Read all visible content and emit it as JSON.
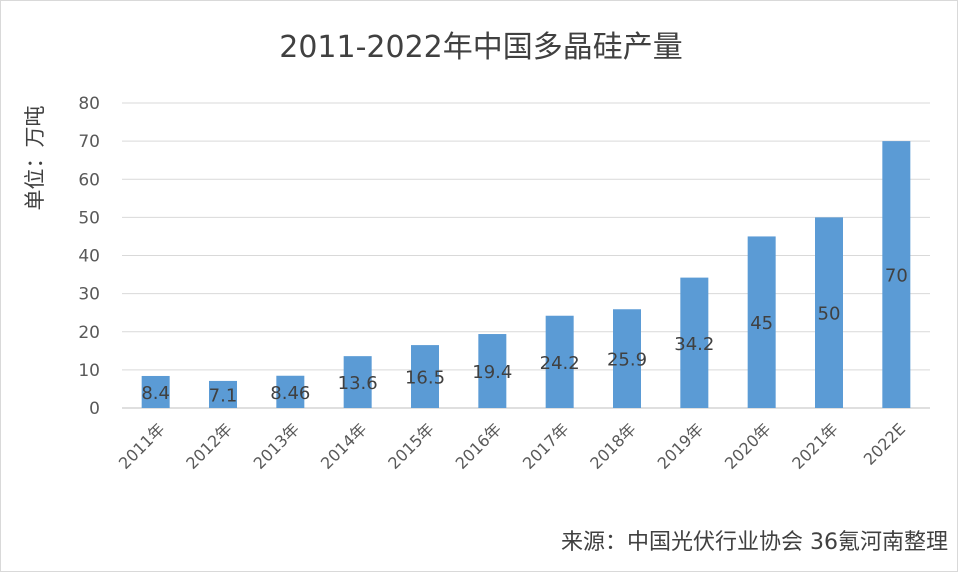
{
  "chart_data": {
    "type": "bar",
    "title": "2011-2022年中国多晶硅产量",
    "ylabel": "单位：万吨",
    "xlabel": "",
    "categories": [
      "2011年",
      "2012年",
      "2013年",
      "2014年",
      "2015年",
      "2016年",
      "2017年",
      "2018年",
      "2019年",
      "2020年",
      "2021年",
      "2022E"
    ],
    "values": [
      8.4,
      7.1,
      8.46,
      13.6,
      16.5,
      19.4,
      24.2,
      25.9,
      34.2,
      45,
      50,
      70
    ],
    "data_labels": [
      "8.4",
      "7.1",
      "8.46",
      "13.6",
      "16.5",
      "19.4",
      "24.2",
      "25.9",
      "34.2",
      "45",
      "50",
      "70"
    ],
    "ylim": [
      0,
      80
    ],
    "yticks": [
      0,
      10,
      20,
      30,
      40,
      50,
      60,
      70,
      80
    ],
    "grid": true,
    "legend": "none",
    "bar_color": "#5b9bd5"
  },
  "source_note": "来源：中国光伏行业协会 36氪河南整理"
}
